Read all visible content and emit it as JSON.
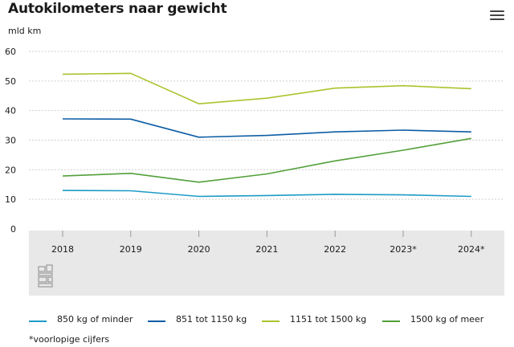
{
  "title": "Autokilometers naar gewicht",
  "unit_label": "mld km",
  "menu": {
    "icon": "hamburger-menu-icon"
  },
  "footnote": "*voorlopige cijfers",
  "logo": {
    "icon": "cbs-logo"
  },
  "chart_data": {
    "type": "line",
    "title": "Autokilometers naar gewicht",
    "ylabel": "mld km",
    "xlabel": "",
    "categories": [
      "2018",
      "2019",
      "2020",
      "2021",
      "2022",
      "2023*",
      "2024*"
    ],
    "ylim": [
      0,
      60
    ],
    "yticks": [
      0,
      10,
      20,
      30,
      40,
      50,
      60
    ],
    "grid": true,
    "legend_position": "bottom",
    "series": [
      {
        "name": "850 kg of minder",
        "color": "#1f9bc7",
        "values": [
          13.0,
          12.9,
          11.0,
          11.3,
          11.7,
          11.5,
          11.0
        ]
      },
      {
        "name": "851 tot 1150 kg",
        "color": "#0c5da5",
        "values": [
          37.2,
          37.1,
          31.0,
          31.6,
          32.8,
          33.4,
          32.8
        ]
      },
      {
        "name": "1151 tot 1500 kg",
        "color": "#a9c42c",
        "values": [
          52.3,
          52.6,
          42.3,
          44.2,
          47.6,
          48.4,
          47.4
        ]
      },
      {
        "name": "1500 kg of meer",
        "color": "#53a03a",
        "values": [
          17.9,
          18.8,
          15.8,
          18.6,
          23.0,
          26.6,
          30.6
        ]
      }
    ]
  }
}
